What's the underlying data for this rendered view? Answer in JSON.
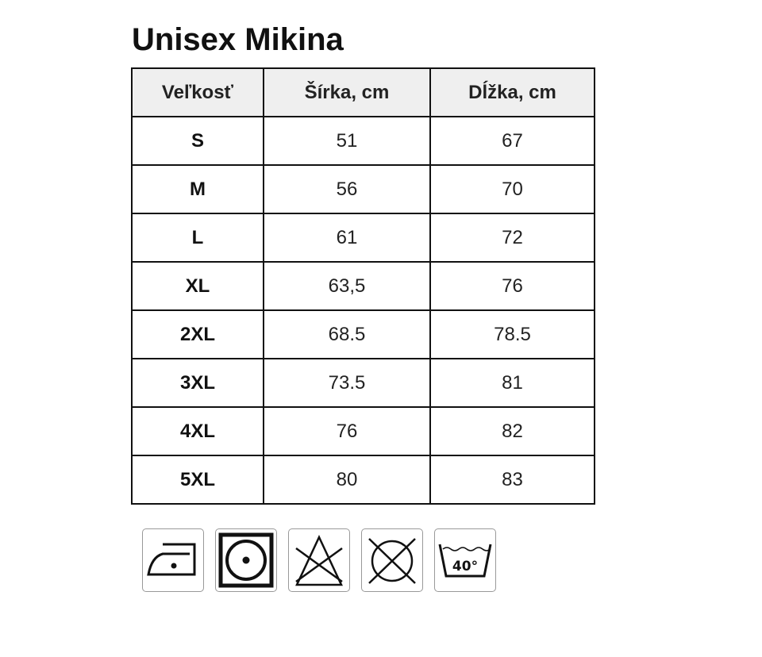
{
  "title": "Unisex Mikina",
  "table": {
    "headers": [
      "Veľkosť",
      "Šírka, cm",
      "Dĺžka, cm"
    ],
    "rows": [
      [
        "S",
        "51",
        "67"
      ],
      [
        "M",
        "56",
        "70"
      ],
      [
        "L",
        "61",
        "72"
      ],
      [
        "XL",
        "63,5",
        "76"
      ],
      [
        "2XL",
        "68.5",
        "78.5"
      ],
      [
        "3XL",
        "73.5",
        "81"
      ],
      [
        "4XL",
        "76",
        "82"
      ],
      [
        "5XL",
        "80",
        "83"
      ]
    ]
  },
  "care_icons": [
    {
      "icon": "iron-low-heat-icon"
    },
    {
      "icon": "tumble-dry-icon"
    },
    {
      "icon": "do-not-bleach-icon"
    },
    {
      "icon": "do-not-dry-clean-icon"
    },
    {
      "icon": "wash-40-icon",
      "label": "40°"
    }
  ]
}
